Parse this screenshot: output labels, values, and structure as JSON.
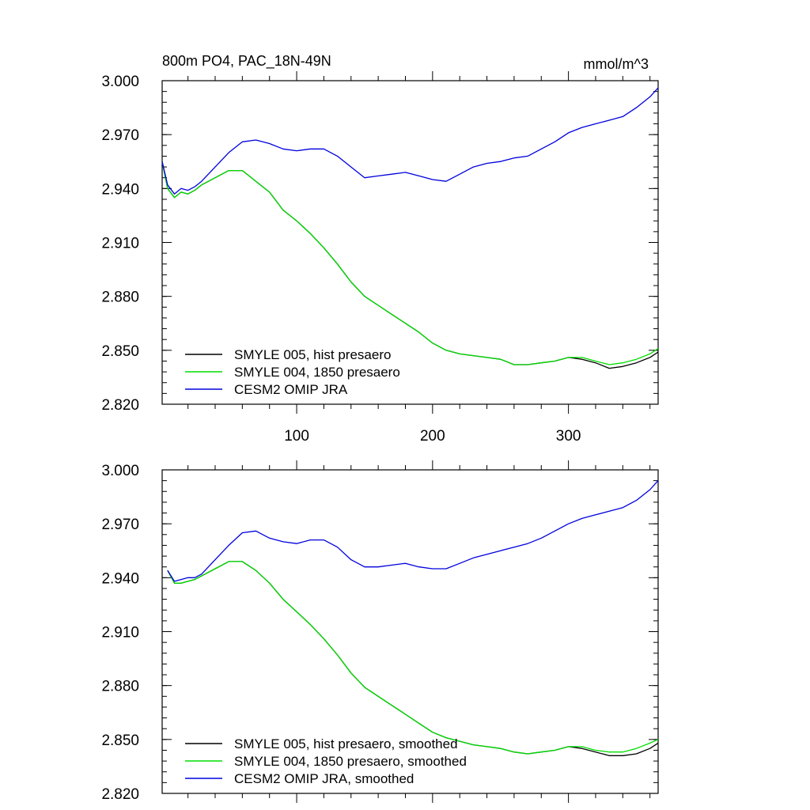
{
  "figure": {
    "title_left": "800m PO4, PAC_18N-49N",
    "title_right": "mmol/m^3"
  },
  "chart_data": [
    {
      "type": "line",
      "panel": "top",
      "ylim": [
        2.82,
        3.0
      ],
      "xlim": [
        1,
        366
      ],
      "yticks": [
        2.82,
        2.85,
        2.88,
        2.91,
        2.94,
        2.97,
        3.0
      ],
      "ytick_labels": [
        "2.820",
        "2.850",
        "2.880",
        "2.910",
        "2.940",
        "2.970",
        "3.000"
      ],
      "xticks": [
        100,
        200,
        300
      ],
      "xtick_labels": [
        "100",
        "200",
        "300"
      ],
      "legend_position": "bottom-left",
      "series": [
        {
          "name": "SMYLE 005, hist presaero",
          "color": "#000000",
          "x": [
            1,
            5,
            10,
            15,
            20,
            25,
            30,
            40,
            50,
            60,
            70,
            80,
            90,
            100,
            110,
            120,
            130,
            140,
            150,
            160,
            170,
            180,
            190,
            200,
            210,
            220,
            230,
            240,
            250,
            260,
            270,
            280,
            290,
            300,
            310,
            320,
            330,
            340,
            350,
            360,
            366
          ],
          "values": [
            2.955,
            2.94,
            2.935,
            2.938,
            2.937,
            2.939,
            2.942,
            2.946,
            2.95,
            2.95,
            2.944,
            2.938,
            2.928,
            2.922,
            2.915,
            2.907,
            2.898,
            2.888,
            2.88,
            2.875,
            2.87,
            2.865,
            2.86,
            2.854,
            2.85,
            2.848,
            2.847,
            2.846,
            2.845,
            2.842,
            2.842,
            2.843,
            2.844,
            2.846,
            2.845,
            2.843,
            2.84,
            2.841,
            2.843,
            2.846,
            2.849
          ]
        },
        {
          "name": "SMYLE 004, 1850 presaero",
          "color": "#00dd00",
          "x": [
            1,
            5,
            10,
            15,
            20,
            25,
            30,
            40,
            50,
            60,
            70,
            80,
            90,
            100,
            110,
            120,
            130,
            140,
            150,
            160,
            170,
            180,
            190,
            200,
            210,
            220,
            230,
            240,
            250,
            260,
            270,
            280,
            290,
            300,
            310,
            320,
            330,
            340,
            350,
            360,
            366
          ],
          "values": [
            2.955,
            2.94,
            2.935,
            2.938,
            2.937,
            2.939,
            2.942,
            2.946,
            2.95,
            2.95,
            2.944,
            2.938,
            2.928,
            2.922,
            2.915,
            2.907,
            2.898,
            2.888,
            2.88,
            2.875,
            2.87,
            2.865,
            2.86,
            2.854,
            2.85,
            2.848,
            2.847,
            2.846,
            2.845,
            2.842,
            2.842,
            2.843,
            2.844,
            2.846,
            2.846,
            2.844,
            2.842,
            2.843,
            2.845,
            2.848,
            2.851
          ]
        },
        {
          "name": "CESM2 OMIP JRA",
          "color": "#0000dd",
          "x": [
            1,
            5,
            10,
            15,
            20,
            25,
            30,
            40,
            50,
            60,
            70,
            80,
            90,
            100,
            110,
            120,
            130,
            140,
            150,
            160,
            170,
            180,
            190,
            200,
            210,
            220,
            230,
            240,
            250,
            260,
            270,
            280,
            290,
            300,
            310,
            320,
            330,
            340,
            350,
            360,
            366
          ],
          "values": [
            2.955,
            2.942,
            2.937,
            2.94,
            2.939,
            2.941,
            2.944,
            2.952,
            2.96,
            2.966,
            2.967,
            2.965,
            2.962,
            2.961,
            2.962,
            2.962,
            2.958,
            2.952,
            2.946,
            2.947,
            2.948,
            2.949,
            2.947,
            2.945,
            2.944,
            2.948,
            2.952,
            2.954,
            2.955,
            2.957,
            2.958,
            2.962,
            2.966,
            2.971,
            2.974,
            2.976,
            2.978,
            2.98,
            2.985,
            2.991,
            2.996
          ]
        }
      ]
    },
    {
      "type": "line",
      "panel": "bottom",
      "ylim": [
        2.82,
        3.0
      ],
      "xlim": [
        1,
        366
      ],
      "yticks": [
        2.82,
        2.85,
        2.88,
        2.91,
        2.94,
        2.97,
        3.0
      ],
      "ytick_labels": [
        "2.820",
        "2.850",
        "2.880",
        "2.910",
        "2.940",
        "2.970",
        "3.000"
      ],
      "xticks": [
        100,
        200,
        300
      ],
      "legend_position": "bottom-left",
      "series": [
        {
          "name": "SMYLE 005, hist presaero, smoothed",
          "color": "#000000",
          "x": [
            5,
            10,
            15,
            20,
            25,
            30,
            40,
            50,
            60,
            70,
            80,
            90,
            100,
            110,
            120,
            130,
            140,
            150,
            160,
            170,
            180,
            190,
            200,
            210,
            220,
            230,
            240,
            250,
            260,
            270,
            280,
            290,
            300,
            310,
            320,
            330,
            340,
            350,
            360,
            366
          ],
          "values": [
            2.944,
            2.937,
            2.937,
            2.938,
            2.939,
            2.941,
            2.945,
            2.949,
            2.949,
            2.944,
            2.937,
            2.928,
            2.921,
            2.914,
            2.906,
            2.897,
            2.887,
            2.879,
            2.874,
            2.869,
            2.864,
            2.859,
            2.854,
            2.851,
            2.849,
            2.847,
            2.846,
            2.845,
            2.843,
            2.842,
            2.843,
            2.844,
            2.846,
            2.845,
            2.843,
            2.841,
            2.841,
            2.842,
            2.845,
            2.848
          ]
        },
        {
          "name": "SMYLE 004, 1850 presaero, smoothed",
          "color": "#00dd00",
          "x": [
            5,
            10,
            15,
            20,
            25,
            30,
            40,
            50,
            60,
            70,
            80,
            90,
            100,
            110,
            120,
            130,
            140,
            150,
            160,
            170,
            180,
            190,
            200,
            210,
            220,
            230,
            240,
            250,
            260,
            270,
            280,
            290,
            300,
            310,
            320,
            330,
            340,
            350,
            360,
            366
          ],
          "values": [
            2.944,
            2.937,
            2.937,
            2.938,
            2.939,
            2.941,
            2.945,
            2.949,
            2.949,
            2.944,
            2.937,
            2.928,
            2.921,
            2.914,
            2.906,
            2.897,
            2.887,
            2.879,
            2.874,
            2.869,
            2.864,
            2.859,
            2.854,
            2.851,
            2.849,
            2.847,
            2.846,
            2.845,
            2.843,
            2.842,
            2.843,
            2.844,
            2.846,
            2.846,
            2.844,
            2.843,
            2.843,
            2.845,
            2.848,
            2.85
          ]
        },
        {
          "name": "CESM2 OMIP JRA, smoothed",
          "color": "#0000dd",
          "x": [
            5,
            10,
            15,
            20,
            25,
            30,
            40,
            50,
            60,
            70,
            80,
            90,
            100,
            110,
            120,
            130,
            140,
            150,
            160,
            170,
            180,
            190,
            200,
            210,
            220,
            230,
            240,
            250,
            260,
            270,
            280,
            290,
            300,
            310,
            320,
            330,
            340,
            350,
            360,
            366
          ],
          "values": [
            2.944,
            2.938,
            2.939,
            2.94,
            2.94,
            2.942,
            2.95,
            2.958,
            2.965,
            2.966,
            2.962,
            2.96,
            2.959,
            2.961,
            2.961,
            2.957,
            2.95,
            2.946,
            2.946,
            2.947,
            2.948,
            2.946,
            2.945,
            2.945,
            2.948,
            2.951,
            2.953,
            2.955,
            2.957,
            2.959,
            2.962,
            2.966,
            2.97,
            2.973,
            2.975,
            2.977,
            2.979,
            2.983,
            2.989,
            2.994
          ]
        }
      ]
    }
  ]
}
